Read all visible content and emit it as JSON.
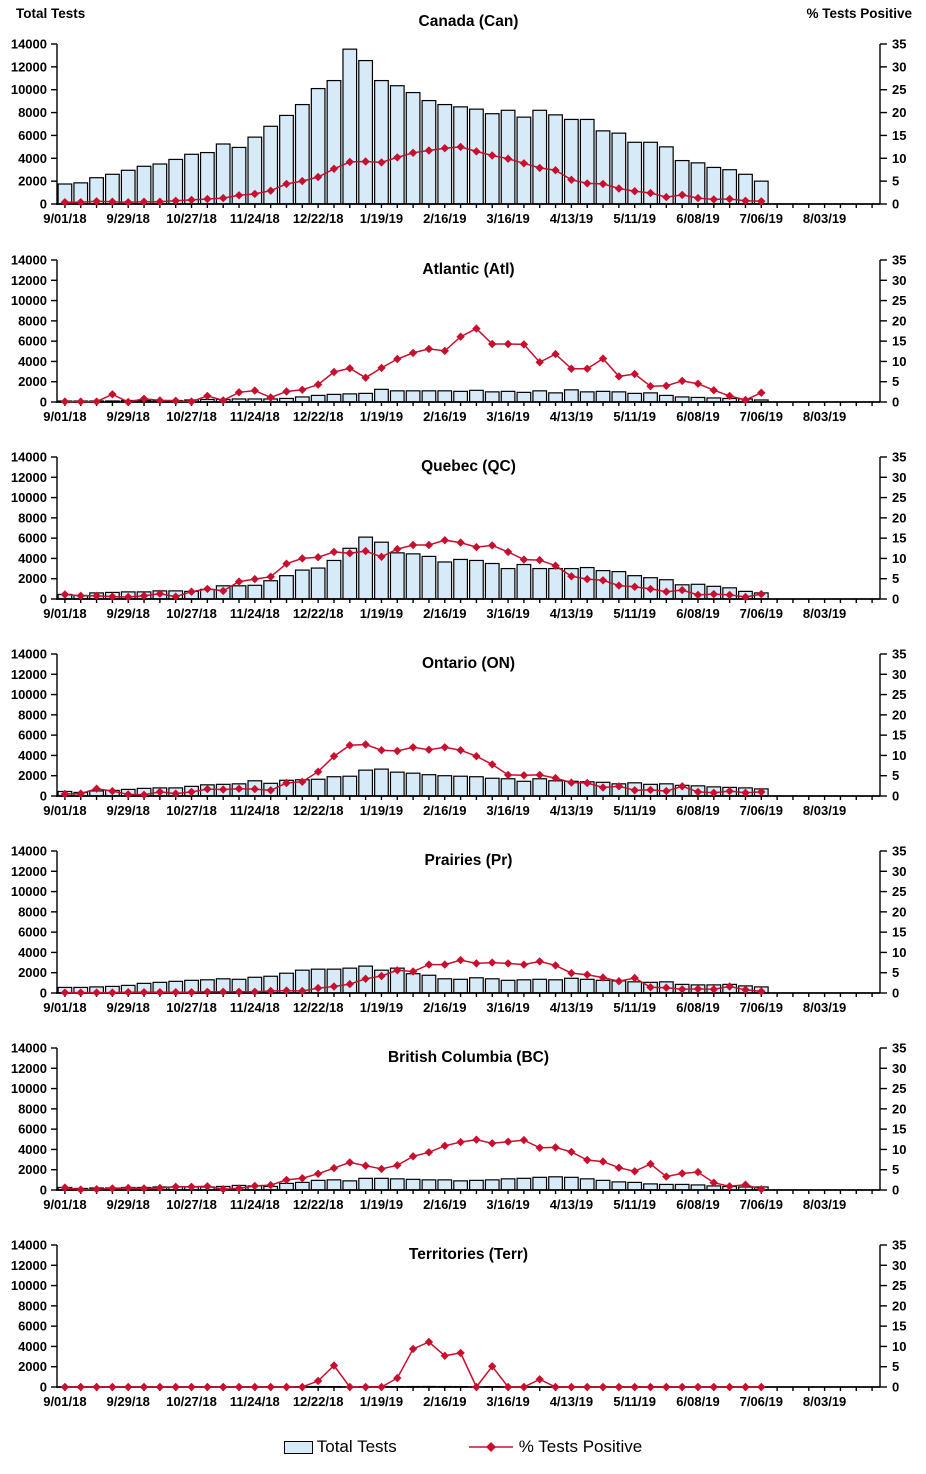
{
  "axes": {
    "left_title": "Total Tests",
    "right_title": "% Tests  Positive",
    "left_ticks": [
      14000,
      12000,
      10000,
      8000,
      6000,
      4000,
      2000,
      0
    ],
    "right_ticks": [
      35,
      30,
      25,
      20,
      15,
      10,
      5,
      0
    ],
    "left_max": 14000,
    "right_max": 35,
    "weeks_total": 52,
    "x_label_every": 4,
    "x_tick_labels": [
      "9/01/18",
      "9/29/18",
      "10/27/18",
      "11/24/18",
      "12/22/18",
      "1/19/19",
      "2/16/19",
      "3/16/19",
      "4/13/19",
      "5/11/19",
      "6/08/19",
      "7/06/19",
      "8/03/19"
    ]
  },
  "legend": {
    "bar_label": "Total Tests",
    "line_label": "% Tests Positive",
    "bar_swatch_icon": "bar-swatch",
    "line_swatch_icon": "line-diamond-marker"
  },
  "colors": {
    "bar_fill": "#D6EAF8",
    "bar_stroke": "#000000",
    "line": "#C8102E",
    "axis": "#000000",
    "text": "#000000"
  },
  "chart_data": [
    {
      "type": "bar+line combo",
      "title": "Canada (Can)",
      "bar_series": "Total Tests",
      "line_series": "% Tests Positive",
      "x_start": "9/01/18",
      "x_end_of_data": "7/06/19",
      "bars": [
        1750,
        1850,
        2300,
        2600,
        2950,
        3300,
        3500,
        3900,
        4350,
        4500,
        5250,
        4950,
        5850,
        6800,
        7750,
        8700,
        10100,
        10800,
        13550,
        12550,
        10800,
        10350,
        9750,
        9050,
        8700,
        8500,
        8300,
        7900,
        8200,
        7600,
        8200,
        7800,
        7400,
        7400,
        6400,
        6200,
        5400,
        5400,
        5000,
        3800,
        3600,
        3200,
        3000,
        2600,
        2000
      ],
      "pct": [
        0.4,
        0.4,
        0.6,
        0.5,
        0.4,
        0.5,
        0.5,
        0.7,
        0.9,
        1.1,
        1.3,
        1.9,
        2.2,
        2.9,
        4.4,
        5.0,
        5.9,
        7.7,
        9.2,
        9.3,
        9.1,
        10.2,
        11.2,
        11.7,
        12.2,
        12.5,
        11.5,
        10.6,
        9.9,
        8.9,
        7.9,
        7.4,
        5.3,
        4.5,
        4.4,
        3.4,
        2.8,
        2.4,
        1.5,
        2.0,
        1.3,
        1.0,
        1.1,
        0.7,
        0.6
      ]
    },
    {
      "type": "bar+line combo",
      "title": "Atlantic (Atl)",
      "bar_series": "Total Tests",
      "line_series": "% Tests Positive",
      "x_start": "9/01/18",
      "x_end_of_data": "7/06/19",
      "bars": [
        100,
        100,
        100,
        100,
        150,
        150,
        150,
        150,
        200,
        250,
        250,
        300,
        300,
        300,
        350,
        500,
        650,
        750,
        800,
        850,
        1250,
        1100,
        1100,
        1100,
        1100,
        1050,
        1150,
        1000,
        1050,
        950,
        1100,
        900,
        1200,
        1000,
        1050,
        1000,
        850,
        900,
        650,
        500,
        450,
        400,
        350,
        300,
        200
      ],
      "pct": [
        0.1,
        0.1,
        0.1,
        1.9,
        0.0,
        0.8,
        0.4,
        0.3,
        0.1,
        1.5,
        0.4,
        2.4,
        2.8,
        1.1,
        2.6,
        3.0,
        4.3,
        7.4,
        8.3,
        6.0,
        8.4,
        10.6,
        12.1,
        13.1,
        12.6,
        16.1,
        18.1,
        14.3,
        14.3,
        14.2,
        9.8,
        11.8,
        8.2,
        8.2,
        10.7,
        6.3,
        6.9,
        3.9,
        4.0,
        5.2,
        4.5,
        2.9,
        1.5,
        0.5,
        2.3
      ]
    },
    {
      "type": "bar+line combo",
      "title": "Quebec (QC)",
      "bar_series": "Total Tests",
      "line_series": "% Tests Positive",
      "x_start": "9/01/18",
      "x_end_of_data": "7/06/19",
      "bars": [
        450,
        350,
        600,
        650,
        700,
        700,
        800,
        800,
        750,
        950,
        1300,
        1300,
        1350,
        1800,
        2300,
        2850,
        3050,
        3800,
        5000,
        6100,
        5600,
        4550,
        4450,
        4200,
        3650,
        3900,
        3800,
        3500,
        3000,
        3400,
        3000,
        3000,
        3000,
        3100,
        2800,
        2700,
        2300,
        2100,
        1900,
        1400,
        1450,
        1250,
        1100,
        750,
        600
      ],
      "pct": [
        1.1,
        0.8,
        0.8,
        0.6,
        0.5,
        0.8,
        1.3,
        0.6,
        1.8,
        2.5,
        2.0,
        4.3,
        4.9,
        5.5,
        8.7,
        10.0,
        10.3,
        11.6,
        11.3,
        11.8,
        10.4,
        12.3,
        13.3,
        13.3,
        14.5,
        13.9,
        12.8,
        13.2,
        11.6,
        9.7,
        9.6,
        8.2,
        5.6,
        4.9,
        4.6,
        3.3,
        3.0,
        2.5,
        1.8,
        2.2,
        1.0,
        1.2,
        1.0,
        0.5,
        1.2
      ]
    },
    {
      "type": "bar+line combo",
      "title": "Ontario (ON)",
      "bar_series": "Total Tests",
      "line_series": "% Tests Positive",
      "x_start": "9/01/18",
      "x_end_of_data": "7/06/19",
      "bars": [
        450,
        350,
        500,
        550,
        650,
        750,
        800,
        800,
        950,
        1100,
        1150,
        1200,
        1500,
        1250,
        1550,
        1600,
        1650,
        1900,
        1950,
        2550,
        2650,
        2350,
        2250,
        2100,
        2000,
        1950,
        1900,
        1750,
        1700,
        1450,
        1700,
        1500,
        1450,
        1400,
        1350,
        1200,
        1300,
        1150,
        1200,
        1050,
        1000,
        900,
        850,
        800,
        700
      ],
      "pct": [
        0.5,
        0.6,
        1.8,
        1.2,
        0.4,
        0.3,
        1.0,
        0.6,
        1.0,
        1.7,
        1.6,
        1.8,
        1.7,
        1.4,
        3.2,
        3.5,
        6.0,
        9.8,
        12.5,
        12.7,
        11.3,
        11.1,
        12.0,
        11.4,
        12.0,
        11.3,
        9.8,
        7.8,
        5.2,
        5.1,
        5.2,
        4.4,
        3.3,
        3.2,
        2.1,
        2.4,
        1.4,
        1.5,
        1.2,
        2.4,
        1.0,
        0.8,
        1.2,
        0.8,
        1.0
      ]
    },
    {
      "type": "bar+line combo",
      "title": "Prairies (Pr)",
      "bar_series": "Total Tests",
      "line_series": "% Tests Positive",
      "x_start": "9/01/18",
      "x_end_of_data": "7/06/19",
      "bars": [
        550,
        550,
        600,
        650,
        750,
        950,
        1050,
        1150,
        1250,
        1300,
        1400,
        1350,
        1550,
        1650,
        1950,
        2250,
        2350,
        2350,
        2450,
        2650,
        2250,
        2450,
        1900,
        1750,
        1400,
        1350,
        1500,
        1400,
        1250,
        1300,
        1350,
        1300,
        1450,
        1350,
        1250,
        1200,
        1100,
        1050,
        1100,
        850,
        800,
        800,
        850,
        700,
        600
      ],
      "pct": [
        0.1,
        0.1,
        0.1,
        0.1,
        0.2,
        0.2,
        0.2,
        0.2,
        0.2,
        0.3,
        0.3,
        0.3,
        0.3,
        0.5,
        0.6,
        0.5,
        1.2,
        1.6,
        2.2,
        3.5,
        4.2,
        5.6,
        5.3,
        7.0,
        7.0,
        8.1,
        7.3,
        7.5,
        7.3,
        7.0,
        7.8,
        6.8,
        4.9,
        4.5,
        3.8,
        2.9,
        3.7,
        1.4,
        1.3,
        0.9,
        1.0,
        0.9,
        1.6,
        0.8,
        0.4
      ]
    },
    {
      "type": "bar+line combo",
      "title": "British Columbia (BC)",
      "bar_series": "Total Tests",
      "line_series": "% Tests Positive",
      "x_start": "9/01/18",
      "x_end_of_data": "7/06/19",
      "bars": [
        250,
        150,
        200,
        200,
        250,
        250,
        300,
        300,
        300,
        300,
        350,
        450,
        400,
        350,
        650,
        750,
        950,
        1000,
        900,
        1150,
        1150,
        1100,
        1050,
        1000,
        1000,
        900,
        950,
        1000,
        1100,
        1150,
        1250,
        1300,
        1250,
        1100,
        950,
        800,
        750,
        600,
        550,
        550,
        500,
        400,
        350,
        300,
        300
      ],
      "pct": [
        0.6,
        0.1,
        0.2,
        0.4,
        0.5,
        0.4,
        0.5,
        0.8,
        0.8,
        0.9,
        0.2,
        0.4,
        1.0,
        1.2,
        2.5,
        2.9,
        4.0,
        5.4,
        6.8,
        6.0,
        5.2,
        6.1,
        8.3,
        9.3,
        10.9,
        11.8,
        12.4,
        11.5,
        11.9,
        12.3,
        10.4,
        10.5,
        9.4,
        7.4,
        7.0,
        5.5,
        4.6,
        6.4,
        3.3,
        4.1,
        4.4,
        1.8,
        0.9,
        1.3,
        0.2
      ]
    },
    {
      "type": "bar+line combo",
      "title": "Territories (Terr)",
      "bar_series": "Total Tests",
      "line_series": "% Tests Positive",
      "x_start": "9/01/18",
      "x_end_of_data": "7/06/19",
      "bars": [
        30,
        20,
        25,
        20,
        30,
        25,
        20,
        30,
        25,
        30,
        35,
        30,
        25,
        30,
        35,
        40,
        45,
        40,
        35,
        40,
        45,
        40,
        45,
        50,
        45,
        40,
        35,
        40,
        35,
        30,
        35,
        30,
        25,
        30,
        25,
        20,
        25,
        20,
        25,
        20,
        20,
        25,
        20,
        20,
        20
      ],
      "pct": [
        0,
        0,
        0,
        0,
        0,
        0,
        0,
        0,
        0,
        0,
        0,
        0,
        0,
        0,
        0,
        0,
        1.5,
        5.3,
        0,
        0,
        0,
        2.2,
        9.4,
        11.1,
        7.7,
        8.4,
        0,
        5.1,
        0,
        0,
        1.9,
        0,
        0,
        0,
        0,
        0,
        0,
        0,
        0,
        0,
        0,
        0,
        0,
        0,
        0
      ]
    }
  ]
}
